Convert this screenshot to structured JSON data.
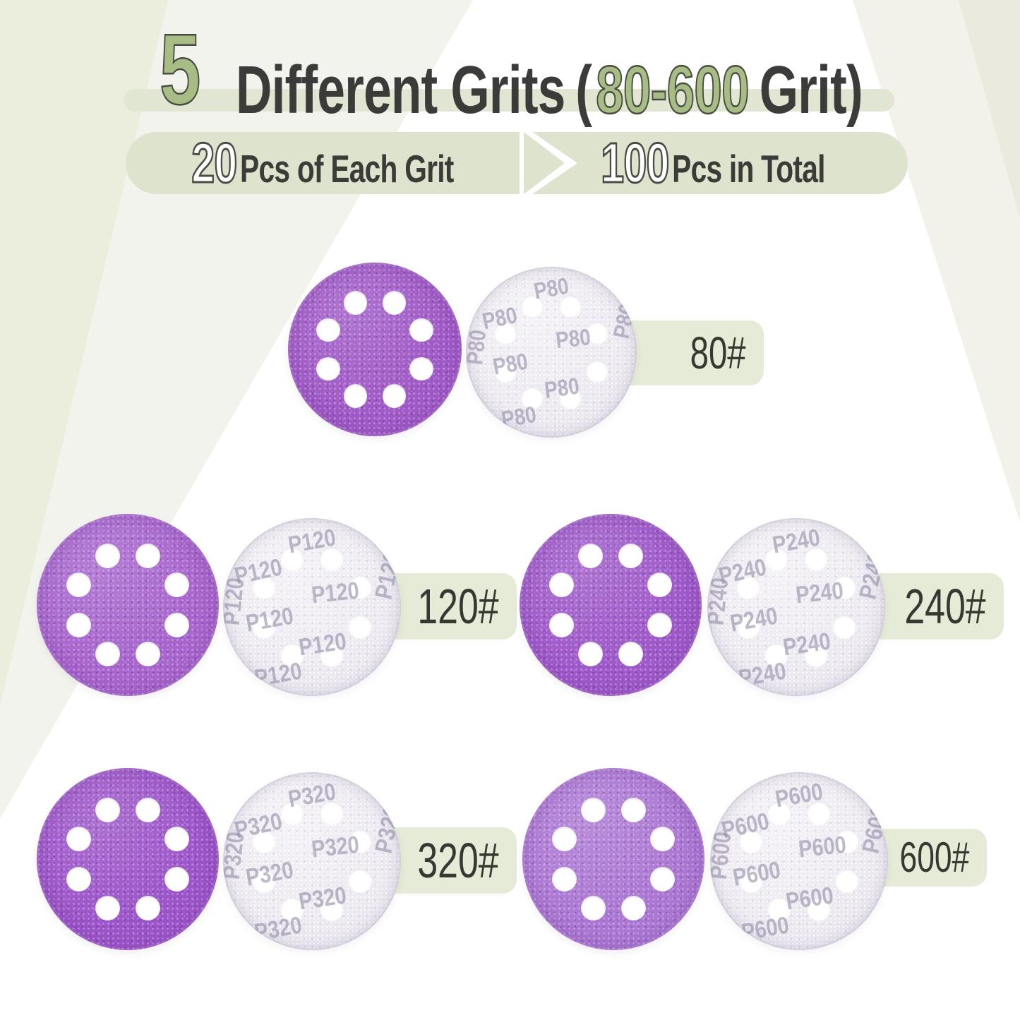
{
  "header": {
    "big_number": "5",
    "title": "Different Grits",
    "paren_open": "(",
    "grit_range": "80-600",
    "paren_close_text": "Grit)"
  },
  "banners": {
    "left_number": "20",
    "left_text": "Pcs of Each Grit",
    "right_number": "100",
    "right_text": "Pcs in Total"
  },
  "grits": [
    {
      "label": "80#",
      "stamp": "P80",
      "color": "#a05ac7"
    },
    {
      "label": "120#",
      "stamp": "P120",
      "color": "#a765cd"
    },
    {
      "label": "240#",
      "stamp": "P240",
      "color": "#9e59c9"
    },
    {
      "label": "320#",
      "stamp": "P320",
      "color": "#9c55c9"
    },
    {
      "label": "600#",
      "stamp": "P600",
      "color": "#ab77d3"
    }
  ],
  "colors": {
    "accent_green": "#a8bc86",
    "banner_bg": "#dde3cd",
    "ribbon_bg": "#e0e6d1",
    "label_bg": "#e5ebd6",
    "disc_back": "#ebe8f0",
    "text_dark": "#3b3b38"
  }
}
